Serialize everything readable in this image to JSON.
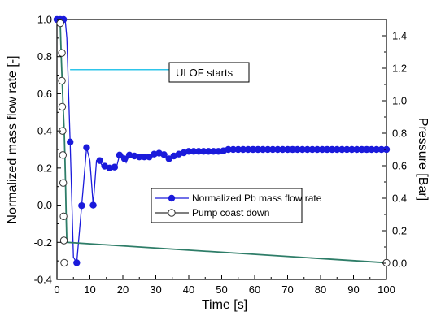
{
  "chart_data": {
    "type": "line",
    "xlabel": "Time [s]",
    "ylabel_left": "Normalized mass flow rate [-]",
    "ylabel_right": "Pressure [Bar]",
    "xlim": [
      0,
      100
    ],
    "ylim_left": [
      -0.4,
      1.0
    ],
    "ylim_right": [
      -0.1,
      1.5
    ],
    "x_ticks": [
      "0",
      "10",
      "20",
      "30",
      "40",
      "50",
      "60",
      "70",
      "80",
      "90",
      "100"
    ],
    "y_left_ticks": [
      "-0.4",
      "-0.2",
      "0.0",
      "0.2",
      "0.4",
      "0.6",
      "0.8",
      "1.0"
    ],
    "y_right_ticks": [
      "0.0",
      "0.2",
      "0.4",
      "0.6",
      "0.8",
      "1.0",
      "1.2",
      "1.4"
    ],
    "grid": false,
    "legend_position": "center-right",
    "annotation": {
      "text": "ULOF starts",
      "arrow_from_x": 2.5,
      "arrow_from_y_left": 0.73,
      "arrow_to_x": 12.6
    },
    "series": [
      {
        "name": "Normalized Pb mass flow rate",
        "axis": "left",
        "color": "#1a1adb",
        "marker": "filled-circle",
        "x": [
          0,
          0.5,
          1,
          1.5,
          2,
          2.5,
          3,
          4,
          5,
          6,
          8,
          9,
          10,
          11,
          12,
          13,
          14,
          15,
          16,
          17,
          18,
          19,
          20,
          21,
          22,
          23,
          24,
          25,
          26,
          28,
          30,
          32,
          34,
          36,
          38,
          40,
          42,
          44,
          46,
          48,
          50,
          52,
          54,
          56,
          58,
          60,
          62,
          64,
          66,
          68,
          70,
          72,
          74,
          76,
          78,
          80,
          82,
          84,
          86,
          88,
          90,
          92,
          94,
          96,
          98,
          100
        ],
        "y": [
          1.0,
          1.0,
          1.0,
          1.0,
          1.0,
          1.0,
          0.9,
          0.34,
          -0.28,
          -0.31,
          0.1,
          0.31,
          0.24,
          0.0,
          0.24,
          0.24,
          0.2,
          0.22,
          0.2,
          0.21,
          0.2,
          0.27,
          0.27,
          0.23,
          0.27,
          0.26,
          0.27,
          0.26,
          0.26,
          0.26,
          0.28,
          0.28,
          0.25,
          0.27,
          0.28,
          0.29,
          0.29,
          0.29,
          0.29,
          0.29,
          0.29,
          0.3,
          0.3,
          0.3,
          0.3,
          0.3,
          0.3,
          0.3,
          0.3,
          0.3,
          0.3,
          0.3,
          0.3,
          0.3,
          0.3,
          0.3,
          0.3,
          0.3,
          0.3,
          0.3,
          0.3,
          0.3,
          0.3,
          0.3,
          0.3,
          0.3
        ],
        "marker_x": [
          0,
          1,
          2,
          4,
          6,
          7.5,
          9,
          11,
          13,
          14.5,
          16,
          17.5,
          19,
          20.5,
          22,
          23.5,
          25,
          26.5,
          28,
          29.5,
          31,
          32.5,
          34,
          35.5,
          37,
          38.5,
          40,
          41.5,
          43,
          44.5,
          46,
          47.5,
          49,
          50.5,
          52,
          53.5,
          55,
          56.5,
          58,
          59.5,
          61,
          62.5,
          64,
          65.5,
          67,
          68.5,
          70,
          71.5,
          73,
          74.5,
          76,
          77.5,
          79,
          80.5,
          82,
          83.5,
          85,
          86.5,
          88,
          89.5,
          91,
          92.5,
          94,
          95.5,
          97,
          98.5,
          100
        ]
      },
      {
        "name": "Pump coast down",
        "axis": "left",
        "color": "#2e7d68",
        "marker": "open-circle",
        "x": [
          0.5,
          1.0,
          1.3,
          1.6,
          1.9,
          2.2,
          2.4,
          2.6,
          2.8,
          3.0,
          100
        ],
        "y": [
          1.0,
          0.98,
          0.8,
          0.66,
          0.52,
          0.4,
          0.27,
          0.12,
          -0.06,
          -0.2,
          -0.31
        ],
        "marker_points": [
          [
            1.0,
            0.98
          ],
          [
            1.5,
            0.82
          ],
          [
            1.5,
            0.67
          ],
          [
            1.6,
            0.53
          ],
          [
            1.7,
            0.4
          ],
          [
            1.8,
            0.27
          ],
          [
            1.9,
            0.12
          ],
          [
            2.0,
            -0.06
          ],
          [
            2.1,
            -0.19
          ],
          [
            2.2,
            -0.31
          ],
          [
            100,
            -0.31
          ]
        ]
      }
    ]
  }
}
